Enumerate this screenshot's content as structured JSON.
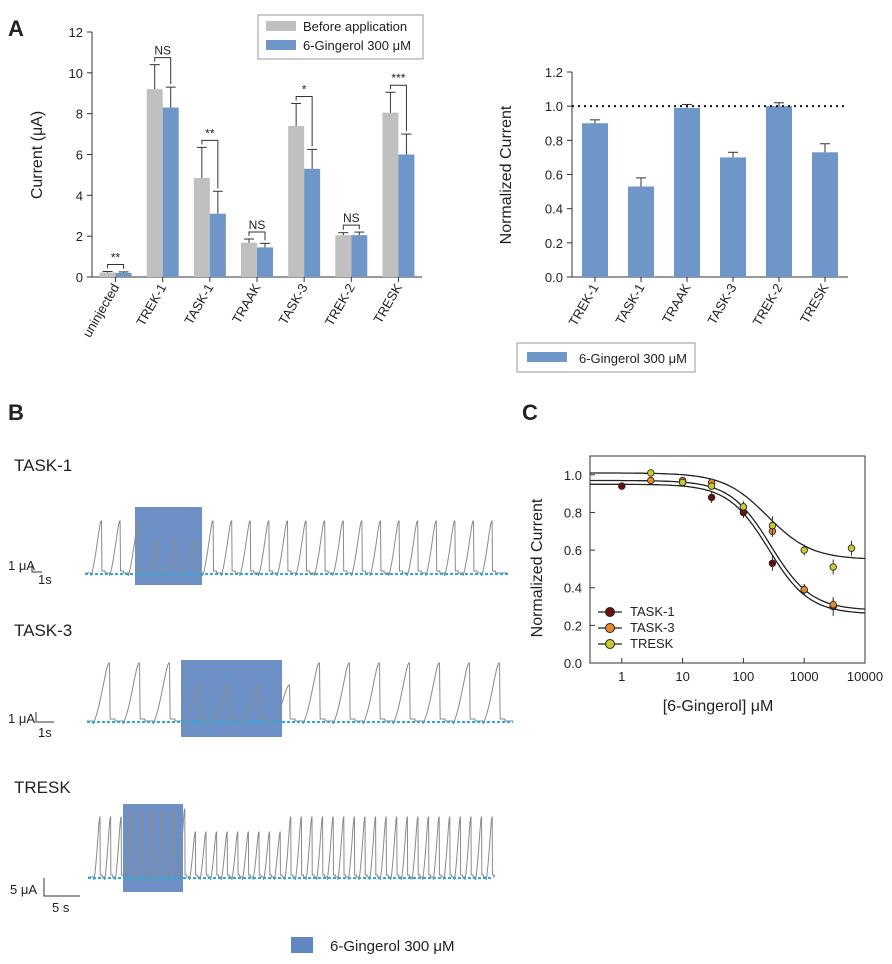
{
  "panels": {
    "a": "A",
    "b": "B",
    "c": "C"
  },
  "colors": {
    "before": "#c0c0c0",
    "gingerol": "#6f96c8",
    "box": "#5f87c0",
    "baseline": "#29a9e0",
    "task1": "#6b0e0e",
    "task3": "#e88a2a",
    "tresk": "#c8c830"
  },
  "chart_data": [
    {
      "id": "A-left",
      "type": "bar",
      "categories": [
        "uninjected",
        "TREK-1",
        "TASK-1",
        "TRAAK",
        "TASK-3",
        "TREK-2",
        "TRESK"
      ],
      "series": [
        {
          "name": "Before application",
          "values": [
            0.22,
            9.2,
            4.85,
            1.68,
            7.4,
            2.05,
            8.05
          ],
          "errors": [
            0.05,
            1.2,
            1.5,
            0.18,
            1.1,
            0.12,
            1.0
          ]
        },
        {
          "name": "6-Gingerol 300 μM",
          "values": [
            0.2,
            8.3,
            3.1,
            1.45,
            5.3,
            2.05,
            6.0
          ],
          "errors": [
            0.05,
            1.0,
            1.1,
            0.2,
            0.95,
            0.15,
            1.0
          ]
        }
      ],
      "significance": [
        "**",
        "NS",
        "**",
        "NS",
        "*",
        "NS",
        "***"
      ],
      "ylabel": "Current (μA)",
      "ylim": [
        0,
        12
      ],
      "yticks": [
        "0",
        "2",
        "4",
        "6",
        "8",
        "10",
        "12"
      ],
      "legend": [
        "Before application",
        "6-Gingerol 300 μM"
      ]
    },
    {
      "id": "A-right",
      "type": "bar",
      "categories": [
        "TREK-1",
        "TASK-1",
        "TRAAK",
        "TASK-3",
        "TREK-2",
        "TRESK"
      ],
      "values": [
        0.9,
        0.53,
        0.99,
        0.7,
        1.0,
        0.73
      ],
      "errors": [
        0.02,
        0.05,
        0.02,
        0.03,
        0.02,
        0.05
      ],
      "reference_line": 1.0,
      "ylabel": "Normalized Current",
      "ylim": [
        0,
        1.2
      ],
      "yticks": [
        "0.0",
        "0.2",
        "0.4",
        "0.6",
        "0.8",
        "1.0",
        "1.2"
      ],
      "legend": [
        "6-Gingerol 300 μM"
      ]
    },
    {
      "id": "C",
      "type": "scatter",
      "xscale": "log",
      "xlim": [
        0.3,
        10000
      ],
      "xticks": [
        "1",
        "10",
        "100",
        "1000",
        "10000"
      ],
      "xlabel": "[6-Gingerol] μM",
      "ylabel": "Normalized Current",
      "ylim": [
        0,
        1.1
      ],
      "yticks": [
        "0.0",
        "0.2",
        "0.4",
        "0.6",
        "0.8",
        "1.0"
      ],
      "series": [
        {
          "name": "TASK-1",
          "x": [
            1,
            10,
            30,
            100,
            300,
            1000,
            3000
          ],
          "y": [
            0.94,
            0.96,
            0.88,
            0.8,
            0.53,
            0.39,
            0.3
          ],
          "err": [
            0.01,
            0.01,
            0.03,
            0.03,
            0.04,
            0.03,
            0.05
          ],
          "fit": {
            "top": 0.95,
            "bottom": 0.26,
            "ic50": 260,
            "hill": 1.3
          }
        },
        {
          "name": "TASK-3",
          "x": [
            3,
            10,
            30,
            100,
            300,
            1000,
            3000
          ],
          "y": [
            0.97,
            0.97,
            0.96,
            0.83,
            0.7,
            0.39,
            0.31
          ],
          "err": [
            0.01,
            0.01,
            0.02,
            0.02,
            0.03,
            0.03,
            0.03
          ],
          "fit": {
            "top": 0.97,
            "bottom": 0.28,
            "ic50": 280,
            "hill": 1.3
          }
        },
        {
          "name": "TRESK",
          "x": [
            3,
            10,
            30,
            100,
            300,
            1000,
            3000,
            6000
          ],
          "y": [
            1.01,
            0.96,
            0.94,
            0.83,
            0.73,
            0.6,
            0.51,
            0.61
          ],
          "err": [
            0.01,
            0.01,
            0.02,
            0.03,
            0.05,
            0.03,
            0.04,
            0.04
          ],
          "fit": {
            "top": 1.01,
            "bottom": 0.55,
            "ic50": 250,
            "hill": 1.2
          }
        }
      ],
      "legend": [
        "TASK-1",
        "TASK-3",
        "TRESK"
      ]
    }
  ],
  "traces": [
    {
      "label": "TASK-1",
      "scale_y": "1 μA",
      "scale_x": "1s"
    },
    {
      "label": "TASK-3",
      "scale_y": "1 μA",
      "scale_x": "1s"
    },
    {
      "label": "TRESK",
      "scale_y": "5 μA",
      "scale_x": "5 s"
    }
  ],
  "bottom_legend": "6-Gingerol 300 μM"
}
